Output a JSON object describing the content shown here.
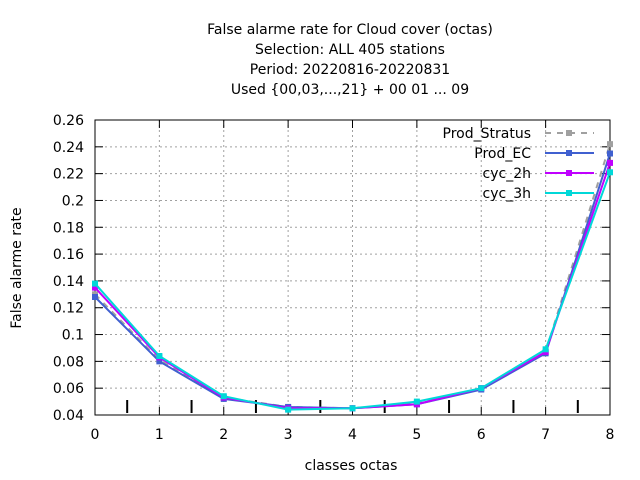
{
  "chart_data": {
    "type": "line",
    "title_lines": [
      "False alarme rate  for Cloud cover (octas)",
      "Selection: ALL    405 stations",
      "Period: 20220816-20220831",
      "Used {00,03,...,21} + 00 01 ... 09"
    ],
    "xlabel": "classes octas",
    "ylabel": "False alarme rate",
    "x": [
      0,
      1,
      2,
      3,
      4,
      5,
      6,
      7,
      8
    ],
    "x_ticks": [
      "0",
      "1",
      "2",
      "3",
      "4",
      "5",
      "6",
      "7",
      "8"
    ],
    "xlim": [
      0,
      8
    ],
    "ylim": [
      0.04,
      0.26
    ],
    "y_ticks": [
      "0.04",
      "0.06",
      "0.08",
      "0.1",
      "0.12",
      "0.14",
      "0.16",
      "0.18",
      "0.2",
      "0.22",
      "0.24",
      "0.26"
    ],
    "grid": true,
    "legend_position": "top-right",
    "series": [
      {
        "name": "Prod_Stratus",
        "color": "#a0a0a0",
        "dashed": true,
        "values": [
          0.13,
          0.081,
          0.053,
          0.046,
          0.045,
          0.049,
          0.06,
          0.087,
          0.242
        ]
      },
      {
        "name": "Prod_EC",
        "color": "#4060d0",
        "dashed": false,
        "values": [
          0.128,
          0.08,
          0.052,
          0.046,
          0.045,
          0.048,
          0.059,
          0.086,
          0.235
        ]
      },
      {
        "name": "cyc_2h",
        "color": "#c000ff",
        "dashed": false,
        "values": [
          0.135,
          0.083,
          0.053,
          0.045,
          0.045,
          0.048,
          0.06,
          0.087,
          0.228
        ]
      },
      {
        "name": "cyc_3h",
        "color": "#00d8d8",
        "dashed": false,
        "values": [
          0.138,
          0.084,
          0.054,
          0.044,
          0.045,
          0.05,
          0.06,
          0.089,
          0.221
        ]
      }
    ]
  }
}
